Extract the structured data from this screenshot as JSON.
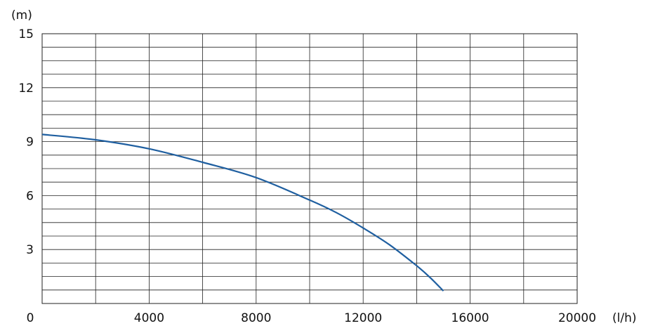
{
  "chart_data": {
    "type": "line",
    "y_unit_label": "(m)",
    "x_unit_label": "(l/h)",
    "xlim": [
      0,
      20000
    ],
    "ylim": [
      0,
      15
    ],
    "x_ticks": [
      0,
      4000,
      8000,
      12000,
      16000,
      20000
    ],
    "x_tick_labels": [
      "0",
      "4000",
      "8000",
      "12000",
      "16000",
      "20000"
    ],
    "y_ticks": [
      3,
      6,
      9,
      12,
      15
    ],
    "y_tick_labels": [
      "3",
      "6",
      "9",
      "12",
      "15"
    ],
    "x_grid_step": 2000,
    "y_grid_step": 0.75,
    "grid": true,
    "line_color": "#1f5fa0",
    "series": [
      {
        "x": [
          0,
          2000,
          4000,
          6000,
          8000,
          10000,
          11000,
          12000,
          13000,
          14000,
          14500,
          15000
        ],
        "y": [
          9.4,
          9.1,
          8.6,
          7.85,
          7.0,
          5.75,
          5.05,
          4.2,
          3.25,
          2.1,
          1.45,
          0.7
        ]
      }
    ]
  }
}
